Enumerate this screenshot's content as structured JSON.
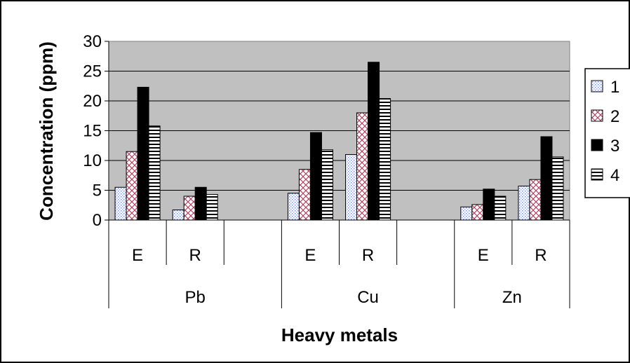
{
  "chart_data": {
    "type": "bar",
    "xlabel": "Heavy metals",
    "ylabel": "Concentration (ppm)",
    "ylim": [
      0,
      30
    ],
    "yticks": [
      0,
      5,
      10,
      15,
      20,
      25,
      30
    ],
    "grid": true,
    "legend_position": "right",
    "plot_background": "#c0c0c0",
    "groups": [
      {
        "label": "Pb",
        "categories": [
          "E",
          "R",
          ""
        ]
      },
      {
        "label": "Cu",
        "categories": [
          "E",
          "R",
          ""
        ]
      },
      {
        "label": "Zn",
        "categories": [
          "E",
          "R"
        ]
      }
    ],
    "series": [
      {
        "name": "1",
        "pattern": "dots",
        "values": [
          5.5,
          1.7,
          null,
          4.5,
          11,
          null,
          2.2,
          5.7
        ]
      },
      {
        "name": "2",
        "pattern": "diamond",
        "values": [
          11.5,
          4,
          null,
          8.5,
          18,
          null,
          2.6,
          6.8
        ]
      },
      {
        "name": "3",
        "pattern": "solid",
        "values": [
          22.3,
          5.5,
          null,
          14.7,
          26.5,
          null,
          5.2,
          14
        ]
      },
      {
        "name": "4",
        "pattern": "hstripe",
        "values": [
          15.8,
          4.3,
          null,
          11.8,
          20.4,
          null,
          4,
          10.6
        ]
      }
    ]
  }
}
